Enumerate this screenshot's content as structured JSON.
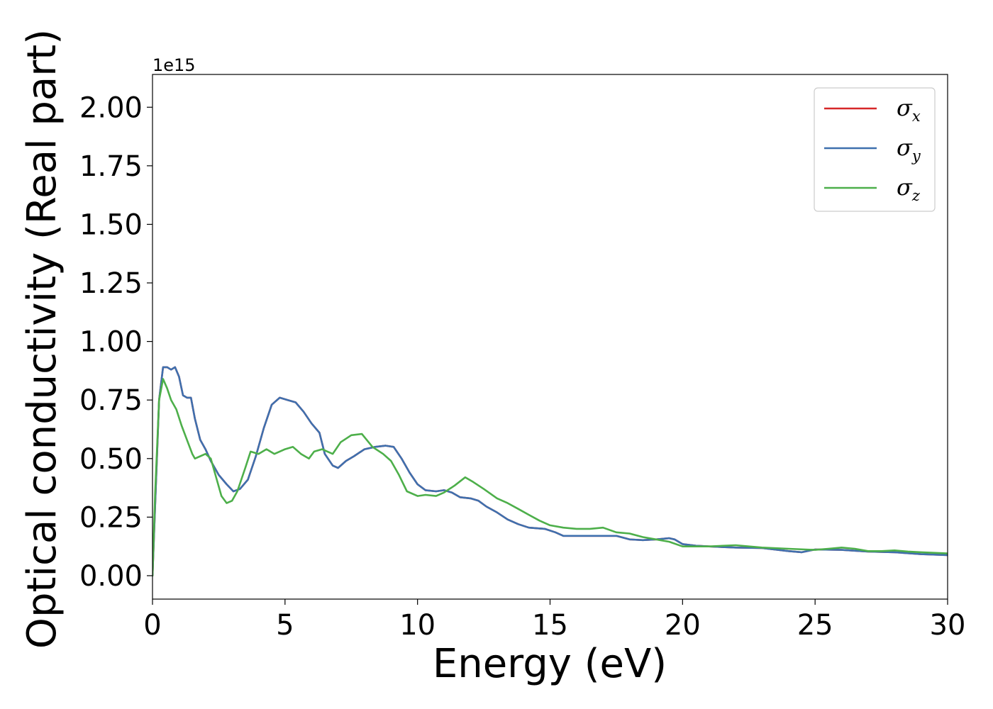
{
  "chart_data": {
    "type": "line",
    "xlabel": "Energy (eV)",
    "ylabel": "Optical conductivity (Real part)",
    "y_offset_text": "1e15",
    "xlim": [
      0,
      30
    ],
    "ylim": [
      -0.1,
      2.14
    ],
    "x_ticks": [
      0,
      5,
      10,
      15,
      20,
      25,
      30
    ],
    "x_tick_labels": [
      "0",
      "5",
      "10",
      "15",
      "20",
      "25",
      "30"
    ],
    "y_ticks": [
      0.0,
      0.25,
      0.5,
      0.75,
      1.0,
      1.25,
      1.5,
      1.75,
      2.0
    ],
    "y_tick_labels": [
      "0.00",
      "0.25",
      "0.50",
      "0.75",
      "1.00",
      "1.25",
      "1.50",
      "1.75",
      "2.00"
    ],
    "grid": false,
    "legend_position": "top-right",
    "legend": [
      {
        "symbol": "σ",
        "subscript": "x",
        "color": "#d62728"
      },
      {
        "symbol": "σ",
        "subscript": "y",
        "color": "#3e70ae"
      },
      {
        "symbol": "σ",
        "subscript": "z",
        "color": "#4daf4a"
      }
    ],
    "series": [
      {
        "color": "#d62728",
        "points": [
          [
            0,
            0
          ],
          [
            0.1,
            0.3
          ],
          [
            0.25,
            0.75
          ],
          [
            0.4,
            0.89
          ],
          [
            0.55,
            0.89
          ],
          [
            0.7,
            0.88
          ],
          [
            0.85,
            0.89
          ],
          [
            1.0,
            0.85
          ],
          [
            1.15,
            0.77
          ],
          [
            1.3,
            0.76
          ],
          [
            1.45,
            0.76
          ],
          [
            1.6,
            0.67
          ],
          [
            1.8,
            0.58
          ],
          [
            2.0,
            0.54
          ],
          [
            2.2,
            0.49
          ],
          [
            2.5,
            0.43
          ],
          [
            2.8,
            0.39
          ],
          [
            3.05,
            0.36
          ],
          [
            3.3,
            0.37
          ],
          [
            3.6,
            0.41
          ],
          [
            3.9,
            0.51
          ],
          [
            4.2,
            0.63
          ],
          [
            4.5,
            0.73
          ],
          [
            4.8,
            0.76
          ],
          [
            5.1,
            0.75
          ],
          [
            5.4,
            0.74
          ],
          [
            5.7,
            0.7
          ],
          [
            6.0,
            0.65
          ],
          [
            6.3,
            0.61
          ],
          [
            6.5,
            0.52
          ],
          [
            6.8,
            0.47
          ],
          [
            7.0,
            0.46
          ],
          [
            7.3,
            0.49
          ],
          [
            7.6,
            0.51
          ],
          [
            8.0,
            0.54
          ],
          [
            8.4,
            0.55
          ],
          [
            8.8,
            0.555
          ],
          [
            9.1,
            0.55
          ],
          [
            9.4,
            0.5
          ],
          [
            9.7,
            0.44
          ],
          [
            10.0,
            0.39
          ],
          [
            10.3,
            0.365
          ],
          [
            10.7,
            0.36
          ],
          [
            11.0,
            0.365
          ],
          [
            11.3,
            0.355
          ],
          [
            11.6,
            0.335
          ],
          [
            12.0,
            0.33
          ],
          [
            12.3,
            0.32
          ],
          [
            12.6,
            0.295
          ],
          [
            13.0,
            0.27
          ],
          [
            13.4,
            0.24
          ],
          [
            13.8,
            0.22
          ],
          [
            14.2,
            0.205
          ],
          [
            14.8,
            0.2
          ],
          [
            15.2,
            0.185
          ],
          [
            15.5,
            0.17
          ],
          [
            16.5,
            0.17
          ],
          [
            17.5,
            0.17
          ],
          [
            18.0,
            0.155
          ],
          [
            18.5,
            0.152
          ],
          [
            19.0,
            0.155
          ],
          [
            19.5,
            0.16
          ],
          [
            19.7,
            0.155
          ],
          [
            20.0,
            0.135
          ],
          [
            20.5,
            0.128
          ],
          [
            21.0,
            0.125
          ],
          [
            22.0,
            0.12
          ],
          [
            23.0,
            0.118
          ],
          [
            24.0,
            0.105
          ],
          [
            24.5,
            0.1
          ],
          [
            25.0,
            0.112
          ],
          [
            26.0,
            0.11
          ],
          [
            27.0,
            0.103
          ],
          [
            28.0,
            0.1
          ],
          [
            29.0,
            0.092
          ],
          [
            30.0,
            0.088
          ]
        ]
      },
      {
        "color": "#3e70ae",
        "points": [
          [
            0,
            0
          ],
          [
            0.1,
            0.3
          ],
          [
            0.25,
            0.75
          ],
          [
            0.4,
            0.89
          ],
          [
            0.55,
            0.89
          ],
          [
            0.7,
            0.88
          ],
          [
            0.85,
            0.89
          ],
          [
            1.0,
            0.85
          ],
          [
            1.15,
            0.77
          ],
          [
            1.3,
            0.76
          ],
          [
            1.45,
            0.76
          ],
          [
            1.6,
            0.67
          ],
          [
            1.8,
            0.58
          ],
          [
            2.0,
            0.54
          ],
          [
            2.2,
            0.49
          ],
          [
            2.5,
            0.43
          ],
          [
            2.8,
            0.39
          ],
          [
            3.05,
            0.36
          ],
          [
            3.3,
            0.37
          ],
          [
            3.6,
            0.41
          ],
          [
            3.9,
            0.51
          ],
          [
            4.2,
            0.63
          ],
          [
            4.5,
            0.73
          ],
          [
            4.8,
            0.76
          ],
          [
            5.1,
            0.75
          ],
          [
            5.4,
            0.74
          ],
          [
            5.7,
            0.7
          ],
          [
            6.0,
            0.65
          ],
          [
            6.3,
            0.61
          ],
          [
            6.5,
            0.52
          ],
          [
            6.8,
            0.47
          ],
          [
            7.0,
            0.46
          ],
          [
            7.3,
            0.49
          ],
          [
            7.6,
            0.51
          ],
          [
            8.0,
            0.54
          ],
          [
            8.4,
            0.55
          ],
          [
            8.8,
            0.555
          ],
          [
            9.1,
            0.55
          ],
          [
            9.4,
            0.5
          ],
          [
            9.7,
            0.44
          ],
          [
            10.0,
            0.39
          ],
          [
            10.3,
            0.365
          ],
          [
            10.7,
            0.36
          ],
          [
            11.0,
            0.365
          ],
          [
            11.3,
            0.355
          ],
          [
            11.6,
            0.335
          ],
          [
            12.0,
            0.33
          ],
          [
            12.3,
            0.32
          ],
          [
            12.6,
            0.295
          ],
          [
            13.0,
            0.27
          ],
          [
            13.4,
            0.24
          ],
          [
            13.8,
            0.22
          ],
          [
            14.2,
            0.205
          ],
          [
            14.8,
            0.2
          ],
          [
            15.2,
            0.185
          ],
          [
            15.5,
            0.17
          ],
          [
            16.5,
            0.17
          ],
          [
            17.5,
            0.17
          ],
          [
            18.0,
            0.155
          ],
          [
            18.5,
            0.152
          ],
          [
            19.0,
            0.155
          ],
          [
            19.5,
            0.16
          ],
          [
            19.7,
            0.155
          ],
          [
            20.0,
            0.135
          ],
          [
            20.5,
            0.128
          ],
          [
            21.0,
            0.125
          ],
          [
            22.0,
            0.12
          ],
          [
            23.0,
            0.118
          ],
          [
            24.0,
            0.105
          ],
          [
            24.5,
            0.1
          ],
          [
            25.0,
            0.112
          ],
          [
            26.0,
            0.11
          ],
          [
            27.0,
            0.103
          ],
          [
            28.0,
            0.1
          ],
          [
            29.0,
            0.092
          ],
          [
            30.0,
            0.088
          ]
        ]
      },
      {
        "color": "#4daf4a",
        "points": [
          [
            0,
            0
          ],
          [
            0.1,
            0.35
          ],
          [
            0.25,
            0.75
          ],
          [
            0.4,
            0.84
          ],
          [
            0.55,
            0.8
          ],
          [
            0.7,
            0.75
          ],
          [
            0.9,
            0.71
          ],
          [
            1.1,
            0.64
          ],
          [
            1.3,
            0.58
          ],
          [
            1.5,
            0.52
          ],
          [
            1.6,
            0.5
          ],
          [
            1.8,
            0.51
          ],
          [
            2.0,
            0.52
          ],
          [
            2.2,
            0.5
          ],
          [
            2.4,
            0.42
          ],
          [
            2.6,
            0.34
          ],
          [
            2.8,
            0.31
          ],
          [
            3.0,
            0.32
          ],
          [
            3.2,
            0.36
          ],
          [
            3.5,
            0.46
          ],
          [
            3.7,
            0.53
          ],
          [
            4.0,
            0.52
          ],
          [
            4.3,
            0.54
          ],
          [
            4.6,
            0.52
          ],
          [
            5.0,
            0.54
          ],
          [
            5.3,
            0.55
          ],
          [
            5.6,
            0.52
          ],
          [
            5.9,
            0.5
          ],
          [
            6.1,
            0.53
          ],
          [
            6.4,
            0.54
          ],
          [
            6.8,
            0.52
          ],
          [
            7.1,
            0.57
          ],
          [
            7.5,
            0.6
          ],
          [
            7.9,
            0.605
          ],
          [
            8.3,
            0.55
          ],
          [
            8.7,
            0.52
          ],
          [
            9.0,
            0.49
          ],
          [
            9.3,
            0.43
          ],
          [
            9.6,
            0.36
          ],
          [
            10.0,
            0.34
          ],
          [
            10.3,
            0.345
          ],
          [
            10.7,
            0.34
          ],
          [
            11.0,
            0.355
          ],
          [
            11.4,
            0.385
          ],
          [
            11.8,
            0.42
          ],
          [
            12.1,
            0.4
          ],
          [
            12.5,
            0.37
          ],
          [
            13.0,
            0.33
          ],
          [
            13.4,
            0.31
          ],
          [
            13.8,
            0.285
          ],
          [
            14.2,
            0.26
          ],
          [
            14.6,
            0.235
          ],
          [
            15.0,
            0.215
          ],
          [
            15.5,
            0.205
          ],
          [
            16.0,
            0.2
          ],
          [
            16.5,
            0.2
          ],
          [
            17.0,
            0.205
          ],
          [
            17.5,
            0.185
          ],
          [
            18.0,
            0.18
          ],
          [
            18.5,
            0.165
          ],
          [
            19.0,
            0.155
          ],
          [
            19.5,
            0.145
          ],
          [
            20.0,
            0.125
          ],
          [
            21.0,
            0.125
          ],
          [
            22.0,
            0.13
          ],
          [
            23.0,
            0.12
          ],
          [
            24.0,
            0.115
          ],
          [
            25.0,
            0.11
          ],
          [
            25.5,
            0.115
          ],
          [
            26.0,
            0.12
          ],
          [
            26.5,
            0.115
          ],
          [
            27.0,
            0.105
          ],
          [
            27.5,
            0.105
          ],
          [
            28.0,
            0.108
          ],
          [
            28.5,
            0.103
          ],
          [
            29.0,
            0.1
          ],
          [
            30.0,
            0.095
          ]
        ]
      }
    ]
  }
}
